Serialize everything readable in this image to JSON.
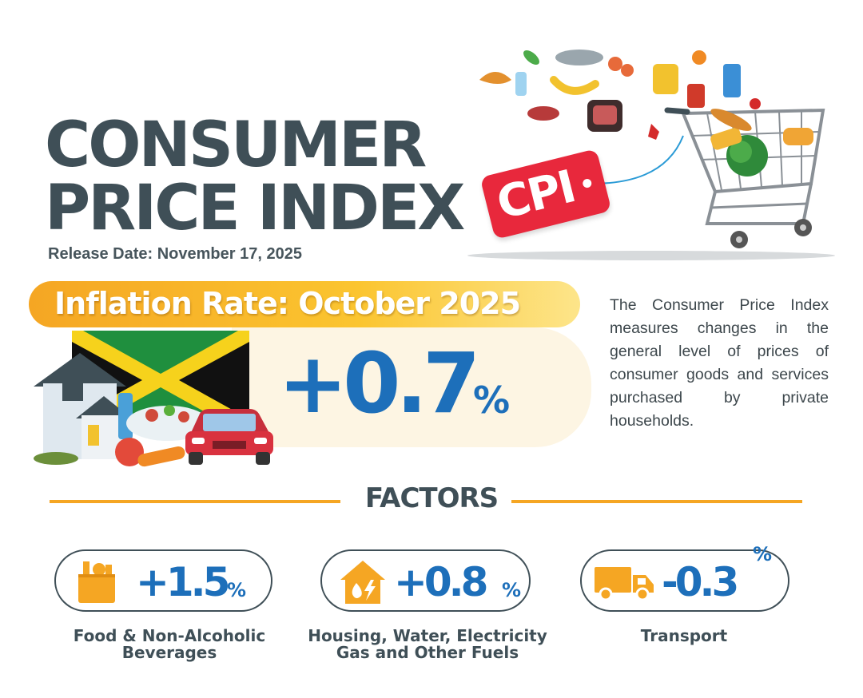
{
  "title_line1": "CONSUMER",
  "title_line2": "PRICE INDEX",
  "release_date": "Release Date: November 17, 2025",
  "tag_text": "CPI",
  "inflation_label": "Inflation Rate: October 2025",
  "inflation_value": "+0.7",
  "inflation_unit": "%",
  "description": "The Consumer Price Index measures changes in the general level of prices of consumer goods and services purchased by private households.",
  "factors_heading": "FACTORS",
  "factors": [
    {
      "value": "+1.5",
      "unit": "%",
      "label_line1": "Food & Non-Alcoholic",
      "label_line2": "Beverages",
      "icon": "grocery-bag-icon"
    },
    {
      "value": "+0.8",
      "unit": "%",
      "label_line1": "Housing, Water, Electricity",
      "label_line2": "Gas and Other Fuels",
      "icon": "house-utilities-icon"
    },
    {
      "value": "-0.3",
      "unit": "%",
      "label_line1": "Transport",
      "label_line2": "",
      "icon": "delivery-truck-icon"
    }
  ],
  "colors": {
    "title": "#3f4f57",
    "accent_orange": "#f5a623",
    "value_blue": "#1d6fba",
    "tag_red": "#e8283c"
  }
}
